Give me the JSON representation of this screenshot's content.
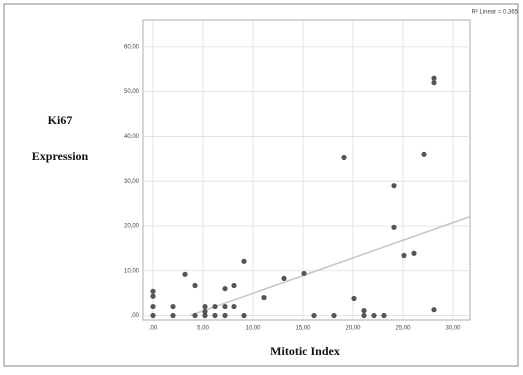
{
  "chart_data": {
    "type": "scatter",
    "y_label_lines": [
      "Ki67",
      "Expression"
    ],
    "x_label": "Mitotic Index",
    "annotation": "R² Linear = 0,365",
    "x": [
      0,
      0,
      0,
      0,
      2,
      2,
      3.2,
      4.2,
      4.2,
      5.2,
      5.2,
      5.2,
      6.2,
      6.2,
      7.2,
      7.2,
      7.2,
      8.1,
      8.1,
      9.1,
      9.1,
      11.1,
      13.1,
      15.1,
      16.1,
      18.1,
      19.1,
      20.1,
      21.1,
      21.1,
      22.1,
      23.1,
      24.1,
      24.1,
      25.1,
      26.1,
      27.1,
      28.1,
      28.1,
      28.1
    ],
    "values": [
      5.4,
      4.3,
      2,
      0,
      2,
      0,
      9.2,
      6.7,
      0,
      2,
      0.9,
      0,
      2,
      0,
      6,
      2,
      0,
      6.7,
      2,
      12.1,
      0,
      4,
      8.3,
      9.4,
      0,
      0,
      35.3,
      3.8,
      1.1,
      0,
      0,
      0,
      29,
      19.7,
      13.4,
      13.9,
      36,
      53,
      52,
      1.3
    ],
    "color": "#555555",
    "fit_line": {
      "x": [
        3.7,
        31.7
      ],
      "values": [
        0,
        22.1
      ],
      "color": "#c8c8c8"
    },
    "xlim": [
      -1,
      31.7
    ],
    "ylim": [
      -1,
      66
    ],
    "xticks": [
      {
        "value": 0,
        "label": ",00"
      },
      {
        "value": 5,
        "label": "5,00"
      },
      {
        "value": 10,
        "label": "10,00"
      },
      {
        "value": 15,
        "label": "15,00"
      },
      {
        "value": 20,
        "label": "20,00"
      },
      {
        "value": 25,
        "label": "25,00"
      },
      {
        "value": 30,
        "label": "30,00"
      }
    ],
    "yticks": [
      {
        "value": 0,
        "label": ",00"
      },
      {
        "value": 10,
        "label": "10,00"
      },
      {
        "value": 20,
        "label": "20,00"
      },
      {
        "value": 30,
        "label": "30,00"
      },
      {
        "value": 40,
        "label": "40,00"
      },
      {
        "value": 50,
        "label": "50,00"
      },
      {
        "value": 60,
        "label": "60,00"
      }
    ],
    "grid": true
  }
}
